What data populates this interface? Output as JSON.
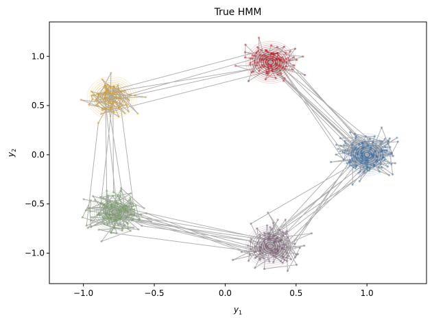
{
  "chart_data": {
    "type": "scatter",
    "title": "True HMM",
    "xlabel": {
      "base": "y",
      "sub": "1"
    },
    "ylabel": {
      "base": "y",
      "sub": "2"
    },
    "xlim": [
      -1.24,
      1.42
    ],
    "ylim": [
      -1.31,
      1.35
    ],
    "xticks": [
      -1.0,
      -0.5,
      0.0,
      0.5,
      1.0
    ],
    "xtick_labels": [
      "−1.0",
      "−0.5",
      "0.0",
      "0.5",
      "1.0"
    ],
    "yticks": [
      1.0,
      0.5,
      0.0,
      -0.5,
      -1.0
    ],
    "ytick_labels": [
      "1.0",
      "0.5",
      "0.0",
      "−0.5",
      "−1.0"
    ],
    "grid": false,
    "transition_color": "#b0b0b0",
    "states": [
      {
        "center": [
          0.32,
          0.94
        ],
        "spread": 0.09,
        "color": "#c0111b"
      },
      {
        "center": [
          1.0,
          0.0
        ],
        "spread": 0.09,
        "color": "#3b6ea5"
      },
      {
        "center": [
          0.32,
          -0.93
        ],
        "spread": 0.09,
        "color": "#7a5873"
      },
      {
        "center": [
          -0.78,
          -0.58
        ],
        "spread": 0.09,
        "color": "#6f9a5e"
      },
      {
        "center": [
          -0.8,
          0.58
        ],
        "spread": 0.09,
        "color": "#d99a14"
      }
    ]
  }
}
